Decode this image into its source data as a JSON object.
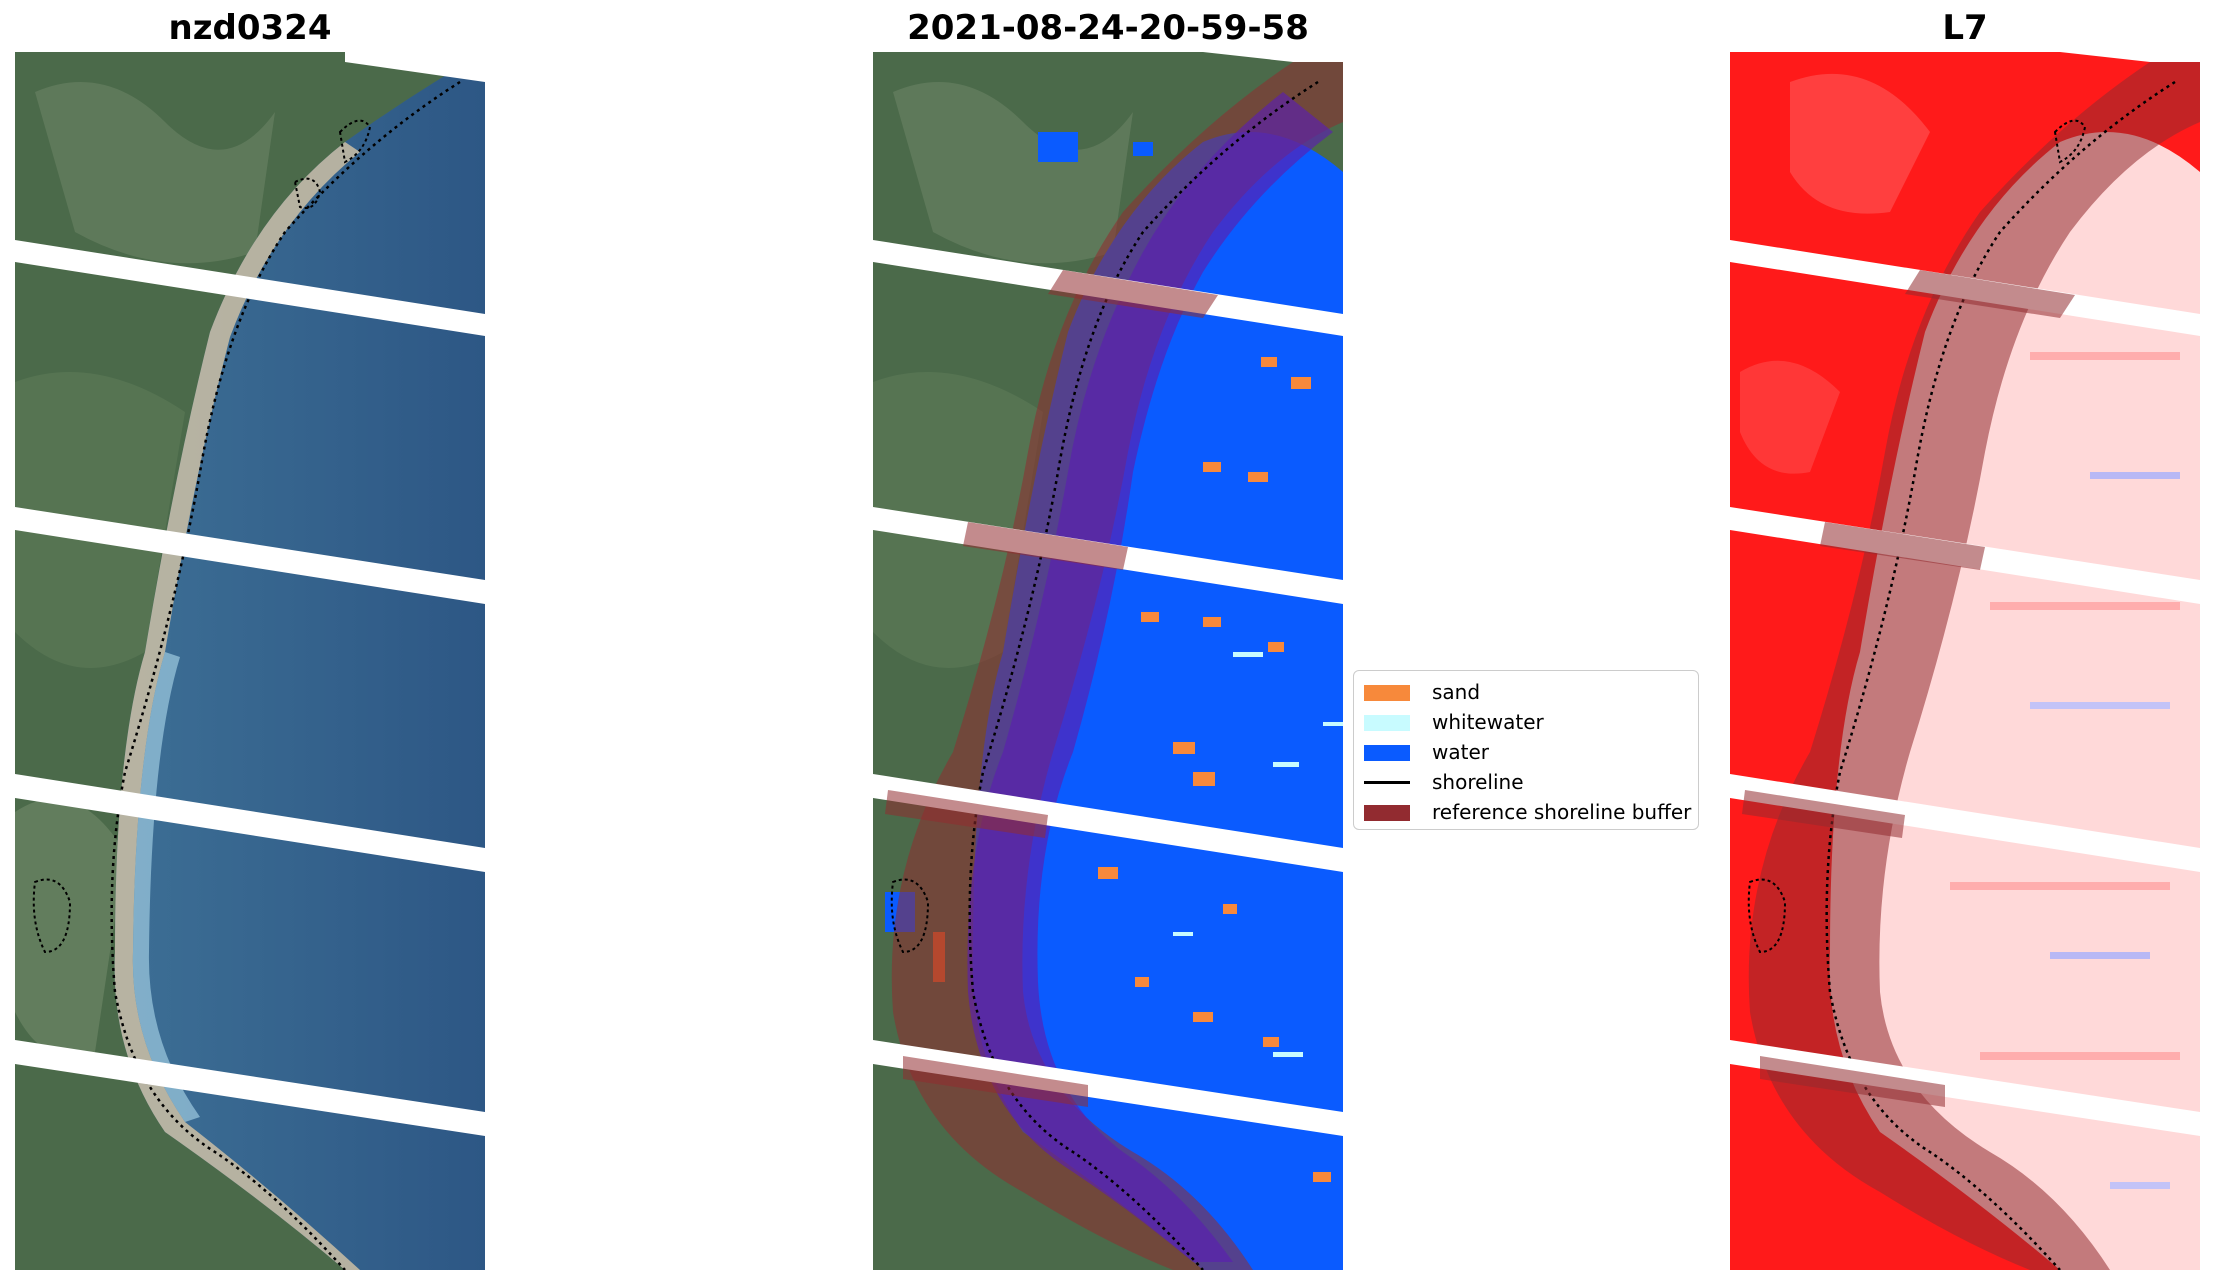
{
  "panels": [
    {
      "title": "nzd0324"
    },
    {
      "title": "2021-08-24-20-59-58"
    },
    {
      "title": "L7"
    }
  ],
  "legend": {
    "items": [
      {
        "label": "sand",
        "color": "#f7893b",
        "kind": "patch"
      },
      {
        "label": "whitewater",
        "color": "#c8fbff",
        "kind": "patch"
      },
      {
        "label": "water",
        "color": "#0a5bff",
        "kind": "patch"
      },
      {
        "label": "shoreline",
        "color": "#000000",
        "kind": "line"
      },
      {
        "label": "reference shoreline buffer",
        "color": "#922b30",
        "kind": "patch"
      }
    ]
  },
  "colors": {
    "land": "#4b6a4a",
    "sea": "#2d5a86",
    "sand_beach": "#cdbfa5",
    "water_class": "#0a5bff",
    "index_high": "#ff1a1a",
    "index_low": "#ffd9d9",
    "buffer": "#922b30"
  }
}
